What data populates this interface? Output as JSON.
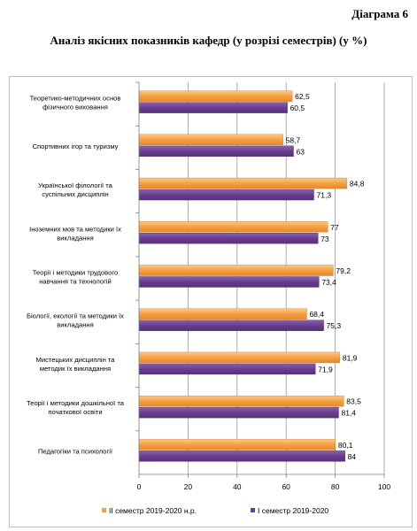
{
  "header": {
    "diagram_number": "Діаграма 6",
    "title": "Аналіз якісних показників кафедр (у розрізі семестрів) (у %)"
  },
  "chart_data": {
    "type": "bar",
    "orientation": "horizontal",
    "categories": [
      [
        "Теоретико-методичних  основ",
        "фізичного виховання"
      ],
      [
        "Спортивних ігор та туризму"
      ],
      [
        "Української філології та",
        "суспільних дисциплін"
      ],
      [
        "Іноземних мов та методики їх",
        "викладання"
      ],
      [
        "Теорії  і  методики  трудового",
        "навчання  та технологій"
      ],
      [
        "Біології, екології та методики їх",
        "викладання"
      ],
      [
        "Мистецьких дисциплін та",
        "методик  їх викладання"
      ],
      [
        "Теорії  і методики  дошкільної та",
        "початкової освіти"
      ],
      [
        "Педагогіки та психології"
      ]
    ],
    "series": [
      {
        "name": "II семестр 2019-2020 н.р.",
        "color": "#f5a044",
        "values": [
          62.5,
          58.7,
          84.8,
          77,
          79.2,
          68.4,
          81.9,
          83.5,
          80.1
        ],
        "labels": [
          "62,5",
          "58,7",
          "84,8",
          "77",
          "79,2",
          "68,4",
          "81,9",
          "83,5",
          "80,1"
        ]
      },
      {
        "name": "I семестр 2019-2020",
        "color": "#6a3d8f",
        "values": [
          60.5,
          63,
          71.3,
          73,
          73.4,
          75.3,
          71.9,
          81.4,
          84
        ],
        "labels": [
          "60,5",
          "63",
          "71,3",
          "73",
          "73,4",
          "75,3",
          "71,9",
          "81,4",
          "84"
        ]
      }
    ],
    "x_ticks": [
      "0",
      "20",
      "40",
      "60",
      "80",
      "100"
    ],
    "xlim": [
      0,
      100
    ],
    "grid": true,
    "legend_position": "bottom"
  }
}
